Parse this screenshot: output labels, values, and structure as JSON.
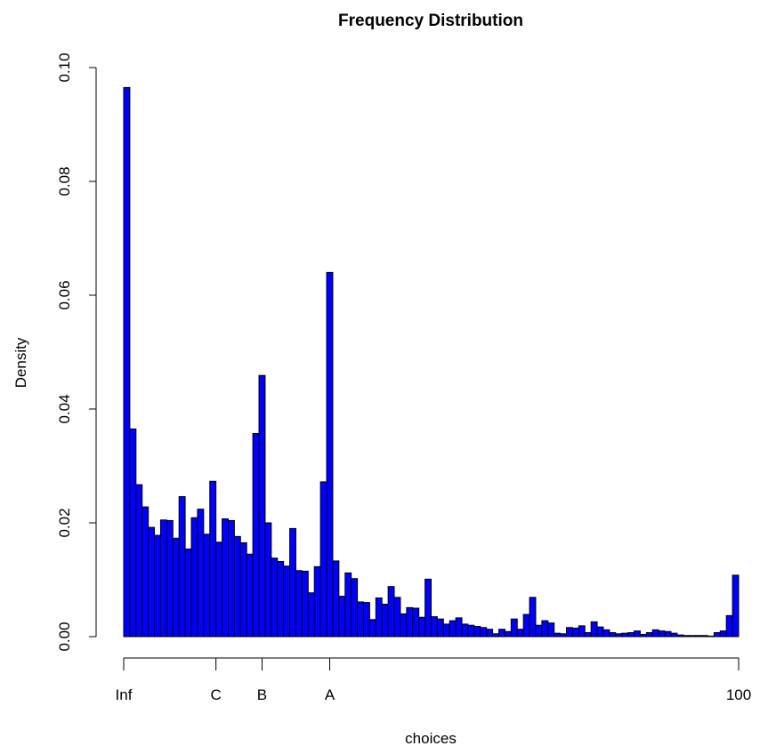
{
  "chart_data": {
    "type": "bar",
    "title": "Frequency Distribution",
    "xlabel": "choices",
    "ylabel": "Density",
    "bar_color": "#0000ff",
    "ylim": [
      0,
      0.1
    ],
    "yticks": [
      0.0,
      0.02,
      0.04,
      0.06,
      0.08,
      0.1
    ],
    "ytick_labels": [
      "0.00",
      "0.02",
      "0.04",
      "0.06",
      "0.08",
      "0.10"
    ],
    "xlim": [
      0,
      100
    ],
    "xticks": [
      {
        "x": 0,
        "label": "Inf"
      },
      {
        "x": 15,
        "label": "C"
      },
      {
        "x": 22.5,
        "label": "B"
      },
      {
        "x": 33.5,
        "label": "A"
      },
      {
        "x": 100,
        "label": "100"
      }
    ],
    "bin_width": 1,
    "values": [
      0.0965,
      0.0365,
      0.0267,
      0.0228,
      0.0192,
      0.0178,
      0.0205,
      0.0204,
      0.0173,
      0.0246,
      0.0154,
      0.0209,
      0.0224,
      0.018,
      0.0273,
      0.0166,
      0.0207,
      0.0204,
      0.0176,
      0.0165,
      0.0145,
      0.0357,
      0.0459,
      0.02,
      0.0138,
      0.0132,
      0.0124,
      0.019,
      0.0116,
      0.0115,
      0.0077,
      0.0123,
      0.0272,
      0.064,
      0.0133,
      0.0071,
      0.0112,
      0.0102,
      0.0061,
      0.006,
      0.003,
      0.0068,
      0.0057,
      0.0088,
      0.0069,
      0.004,
      0.0051,
      0.005,
      0.0034,
      0.0101,
      0.0035,
      0.0031,
      0.0022,
      0.0028,
      0.0033,
      0.0022,
      0.002,
      0.0018,
      0.0016,
      0.0013,
      0.0005,
      0.0013,
      0.0009,
      0.0031,
      0.0013,
      0.0039,
      0.0069,
      0.002,
      0.0028,
      0.0024,
      0.0006,
      0.0005,
      0.0016,
      0.0015,
      0.0019,
      0.0007,
      0.0026,
      0.0017,
      0.0012,
      0.0007,
      0.0005,
      0.0006,
      0.0007,
      0.001,
      0.0004,
      0.0007,
      0.0012,
      0.001,
      0.0009,
      0.0006,
      0.0003,
      0.0002,
      0.0002,
      0.0002,
      0.0002,
      0.0001,
      0.0007,
      0.001,
      0.0037,
      0.0108
    ]
  }
}
